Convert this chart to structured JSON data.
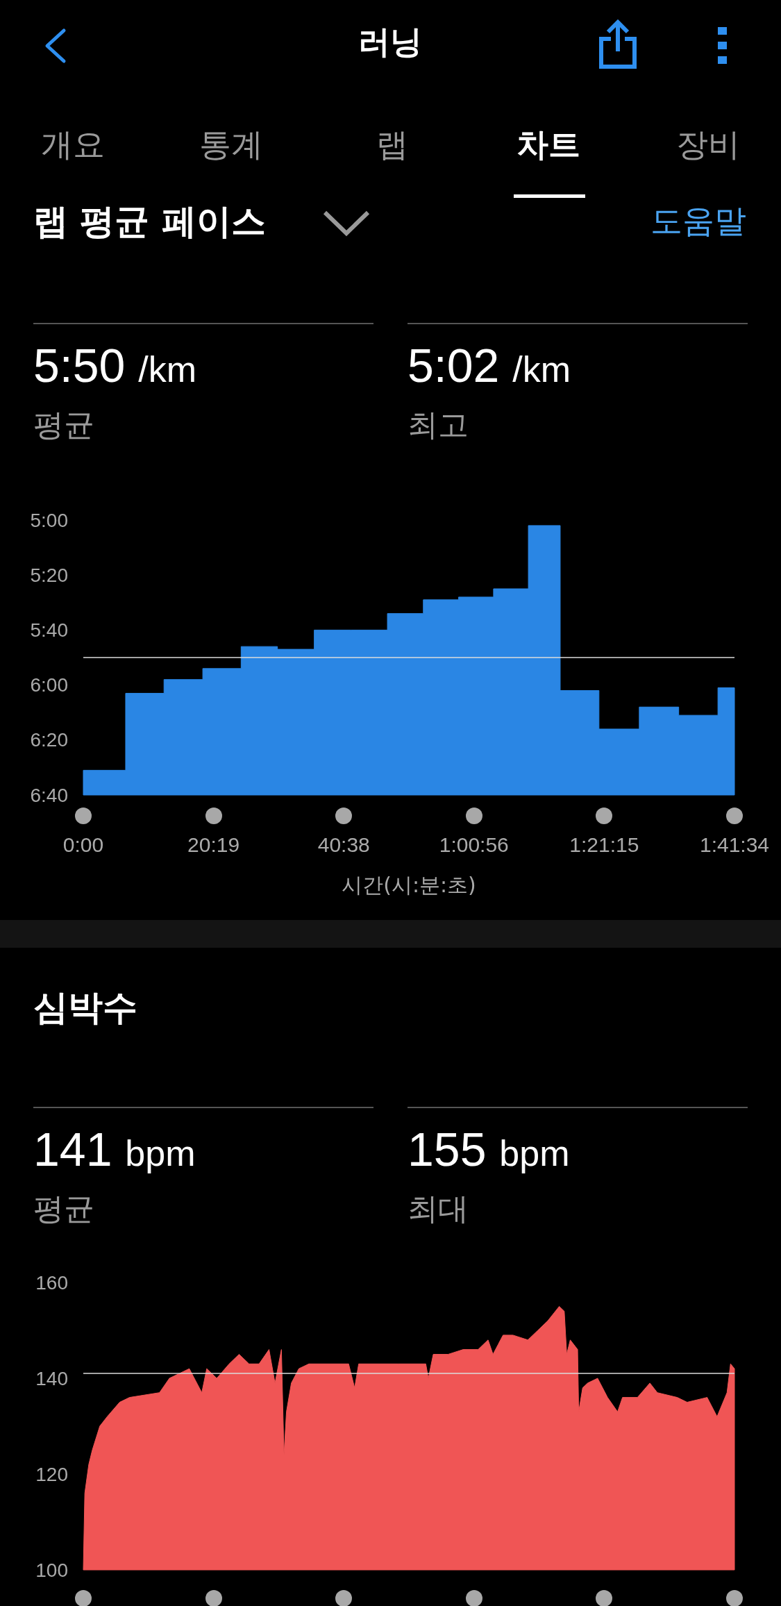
{
  "chart_data": [
    {
      "type": "area",
      "title": "랩 평균 페이스",
      "xlabel": "시간(시:분:초)",
      "annotations": [
        "러닝",
        "개요",
        "통계",
        "랩",
        "차트",
        "장비",
        "도움말",
        "5:50 /km",
        "평균",
        "5:02 /km",
        "최고"
      ],
      "x": [
        0,
        0,
        396,
        396,
        755,
        755,
        1118,
        1118,
        1477,
        1477,
        1817,
        1817,
        2161,
        2161,
        2506,
        2506,
        2846,
        2846,
        3182,
        3182,
        3512,
        3512,
        3839,
        3839,
        4165,
        4165,
        4463,
        4463,
        4826,
        4826,
        5203,
        5203,
        5572,
        5572,
        5939,
        5939,
        6094,
        6094
      ],
      "values": [
        400,
        391,
        391,
        363,
        363,
        358,
        358,
        354,
        354,
        346,
        346,
        347,
        347,
        340,
        340,
        340,
        340,
        334,
        334,
        329,
        329,
        328,
        328,
        325,
        325,
        302,
        302,
        362,
        362,
        376,
        376,
        368,
        368,
        371,
        371,
        361,
        361,
        400
      ],
      "color": "#2a86e4",
      "xlim": [
        0,
        6094
      ],
      "xticks": [
        {
          "value": 0,
          "label": "0:00"
        },
        {
          "value": 1219,
          "label": "20:19"
        },
        {
          "value": 2438,
          "label": "40:38"
        },
        {
          "value": 3656,
          "label": "1:00:56"
        },
        {
          "value": 4875,
          "label": "1:21:15"
        },
        {
          "value": 6094,
          "label": "1:41:34"
        }
      ],
      "ylim": [
        400,
        300
      ],
      "yticks": [
        {
          "value": 300,
          "label": "5:00"
        },
        {
          "value": 320,
          "label": "5:20"
        },
        {
          "value": 340,
          "label": "5:40"
        },
        {
          "value": 360,
          "label": "6:00"
        },
        {
          "value": 380,
          "label": "6:20"
        },
        {
          "value": 400,
          "label": "6:40"
        }
      ],
      "ref_lines": [
        {
          "axis": "y",
          "value": 350,
          "color": "#dddddd"
        }
      ],
      "grid": false
    },
    {
      "type": "area",
      "title": "심박수",
      "annotations": [
        "141 bpm",
        "평균",
        "155 bpm",
        "최대"
      ],
      "x": [
        0,
        14,
        51,
        84,
        154,
        224,
        340,
        433,
        713,
        806,
        992,
        1109,
        1155,
        1249,
        1365,
        1458,
        1551,
        1645,
        1738,
        1794,
        1854,
        1878,
        1901,
        1947,
        2017,
        2111,
        2483,
        2539,
        2577,
        2949,
        3205,
        3229,
        3275,
        3415,
        3555,
        3695,
        3788,
        3834,
        3881,
        3928,
        4021,
        4160,
        4254,
        4347,
        4454,
        4501,
        4524,
        4557,
        4626,
        4636,
        4673,
        4720,
        4813,
        4906,
        5000,
        5046,
        5186,
        5302,
        5372,
        5558,
        5651,
        5838,
        5931,
        6024,
        6057,
        6094
      ],
      "values": [
        100,
        116,
        122,
        125,
        130,
        132,
        135,
        136,
        137,
        140,
        142,
        137,
        142,
        140,
        143,
        145,
        143,
        143,
        146,
        139,
        146,
        124,
        133,
        139,
        142,
        143,
        143,
        138,
        143,
        143,
        143,
        140,
        145,
        145,
        146,
        146,
        148,
        145,
        147,
        149,
        149,
        148,
        150,
        152,
        155,
        154,
        145,
        148,
        146,
        133,
        138,
        139,
        140,
        136,
        133,
        136,
        136,
        139,
        137,
        136,
        135,
        136,
        132,
        137,
        143,
        142
      ],
      "color": "#f05555",
      "xlim": [
        0,
        6094
      ],
      "xticks": [
        {
          "value": 0,
          "label": null
        },
        {
          "value": 1219,
          "label": null
        },
        {
          "value": 2438,
          "label": null
        },
        {
          "value": 3656,
          "label": null
        },
        {
          "value": 4875,
          "label": null
        },
        {
          "value": 6094,
          "label": null
        }
      ],
      "ylim": [
        100,
        160
      ],
      "yticks": [
        100,
        120,
        140,
        160
      ],
      "tick_labels": "y",
      "ref_lines": [
        {
          "axis": "y",
          "value": 141,
          "color": "#dddddd"
        }
      ],
      "grid": false
    }
  ]
}
